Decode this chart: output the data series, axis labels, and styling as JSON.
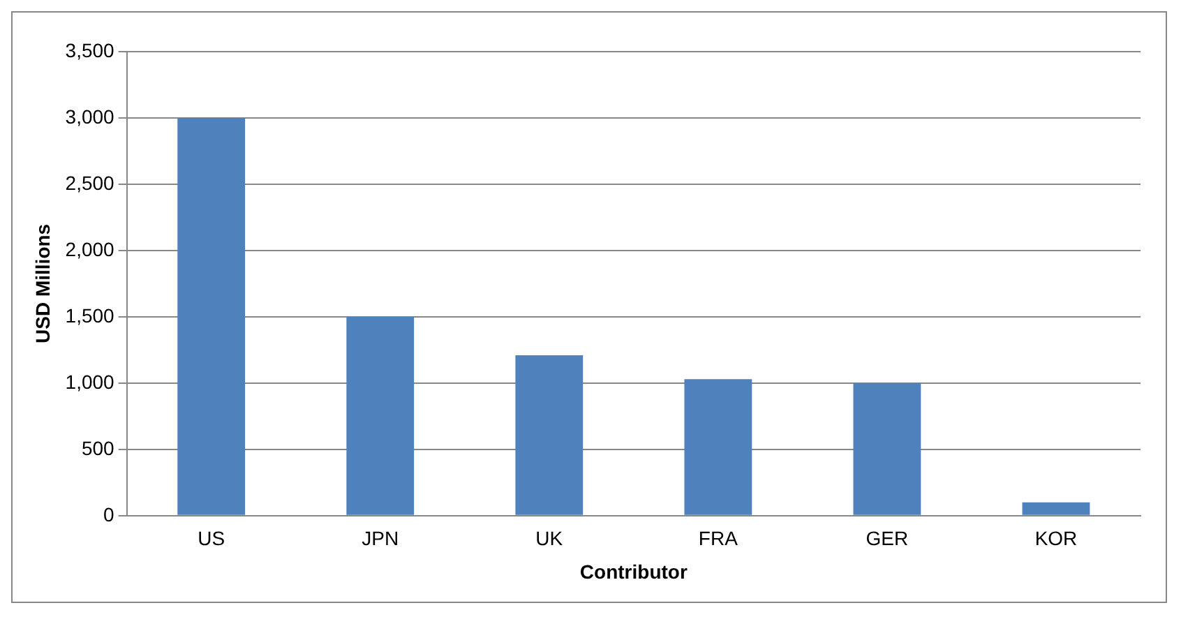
{
  "chart_data": {
    "type": "bar",
    "xlabel": "Contributor",
    "ylabel": "USD Millions",
    "categories": [
      "US",
      "JPN",
      "UK",
      "FRA",
      "GER",
      "KOR"
    ],
    "values": [
      3000,
      1500,
      1210,
      1030,
      1000,
      100
    ],
    "color": "#4f81bd",
    "ylim": [
      0,
      3500
    ],
    "yticks": [
      {
        "value": 0,
        "label": "0"
      },
      {
        "value": 500,
        "label": "500"
      },
      {
        "value": 1000,
        "label": "1,000"
      },
      {
        "value": 1500,
        "label": "1,500"
      },
      {
        "value": 2000,
        "label": "2,000"
      },
      {
        "value": 2500,
        "label": "2,500"
      },
      {
        "value": 3000,
        "label": "3,000"
      },
      {
        "value": 3500,
        "label": "3,500"
      }
    ],
    "grid": "y",
    "legend": false
  }
}
